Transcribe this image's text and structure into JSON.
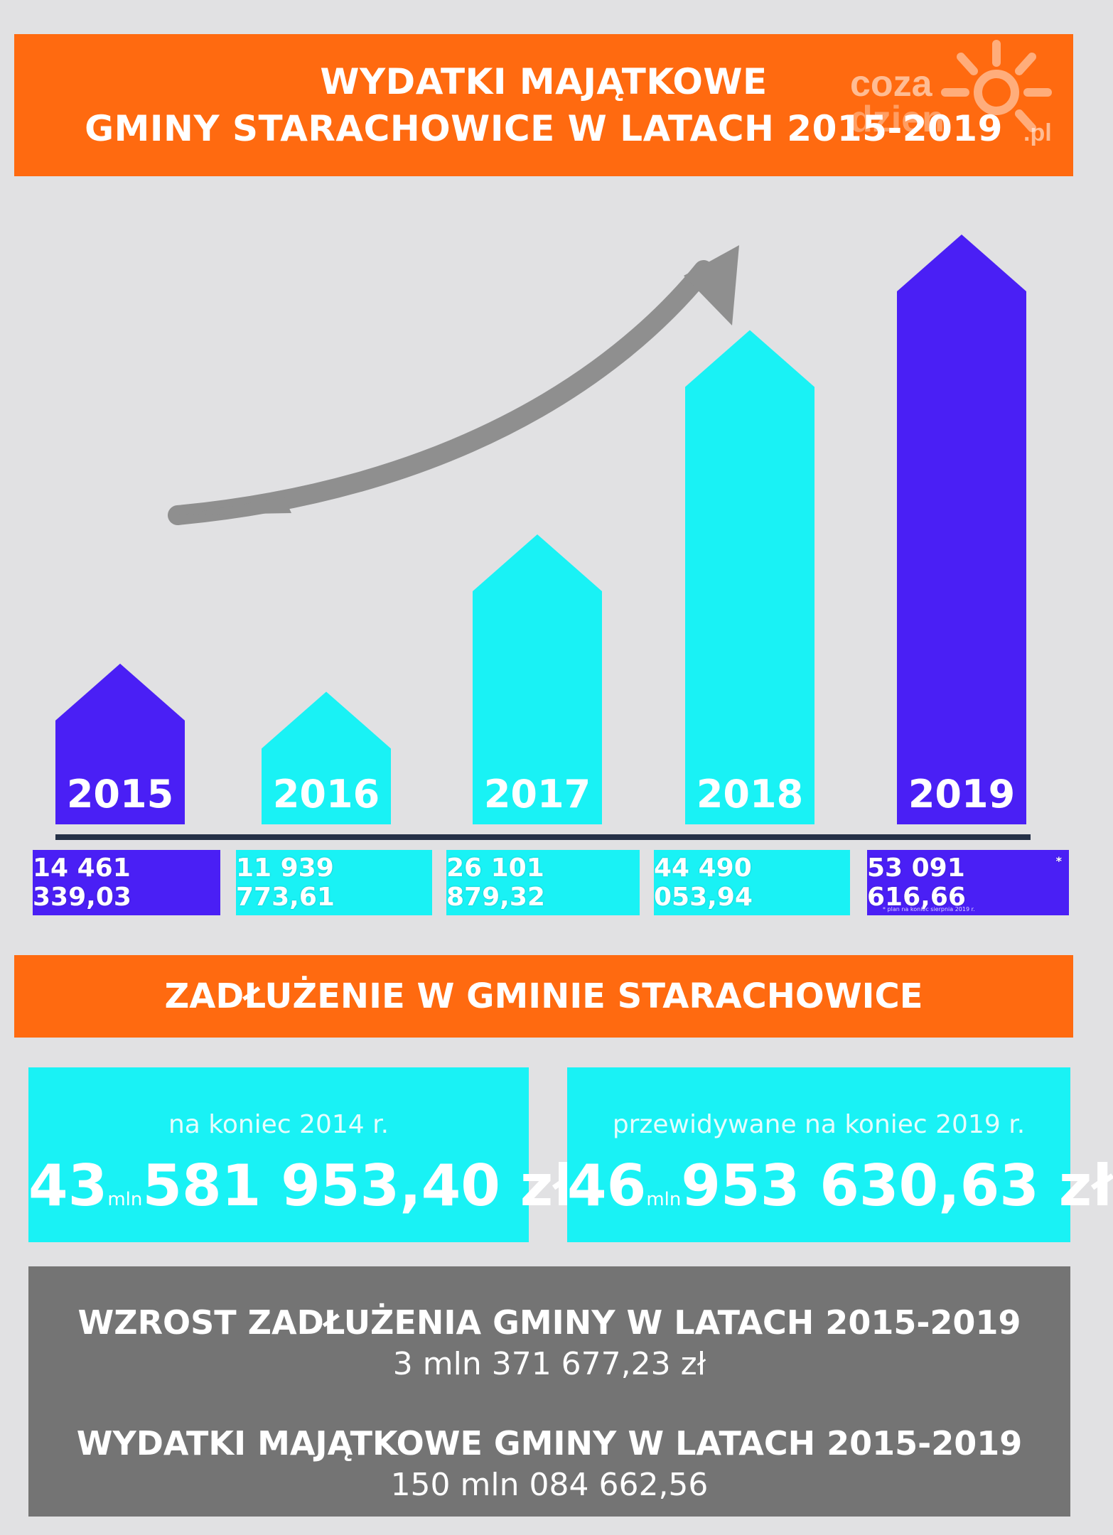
{
  "title": {
    "line1": "WYDATKI MAJĄTKOWE",
    "line2": "GMINY STARACHOWICE W LATACH 2015-2019"
  },
  "logo": {
    "line1": "coza",
    "line2": "dzien",
    "line3": ".pl"
  },
  "chart_data": {
    "type": "bar",
    "categories": [
      "2015",
      "2016",
      "2017",
      "2018",
      "2019"
    ],
    "values": [
      14461339.03,
      11939773.61,
      26101879.32,
      44490053.94,
      53091616.66
    ],
    "value_labels": [
      "14 461 339,03",
      "11 939 773,61",
      "26 101 879,32",
      "44 490 053,94",
      "53 091 616,66"
    ],
    "bar_colors": [
      "#4a1ff5",
      "#19f2f5",
      "#19f2f5",
      "#19f2f5",
      "#4a1ff5"
    ],
    "footnote_marker": "*",
    "footnote": "* plan na koniec sierpnia 2019 r."
  },
  "debt": {
    "heading": "ZADŁUŻENIE W GMINIE STARACHOWICE",
    "cards": [
      {
        "label": "na koniec 2014 r.",
        "big": "43",
        "unit": "mln",
        "rest": "581 953,40 zł"
      },
      {
        "label": "przewidywane na koniec 2019 r.",
        "big": "46",
        "unit": "mln",
        "rest": "953 630,63 zł"
      }
    ]
  },
  "summary": {
    "growth_title": "WZROST ZADŁUŻENIA GMINY W LATACH 2015-2019",
    "growth_value": "3 mln 371 677,23 zł",
    "spending_title": "WYDATKI MAJĄTKOWE GMINY W LATACH 2015-2019",
    "spending_value": "150 mln 084 662,56"
  },
  "colors": {
    "orange": "#ff6a10",
    "purple": "#4a1ff5",
    "cyan": "#19f2f5",
    "gray": "#747474",
    "background": "#e1e1e3"
  }
}
